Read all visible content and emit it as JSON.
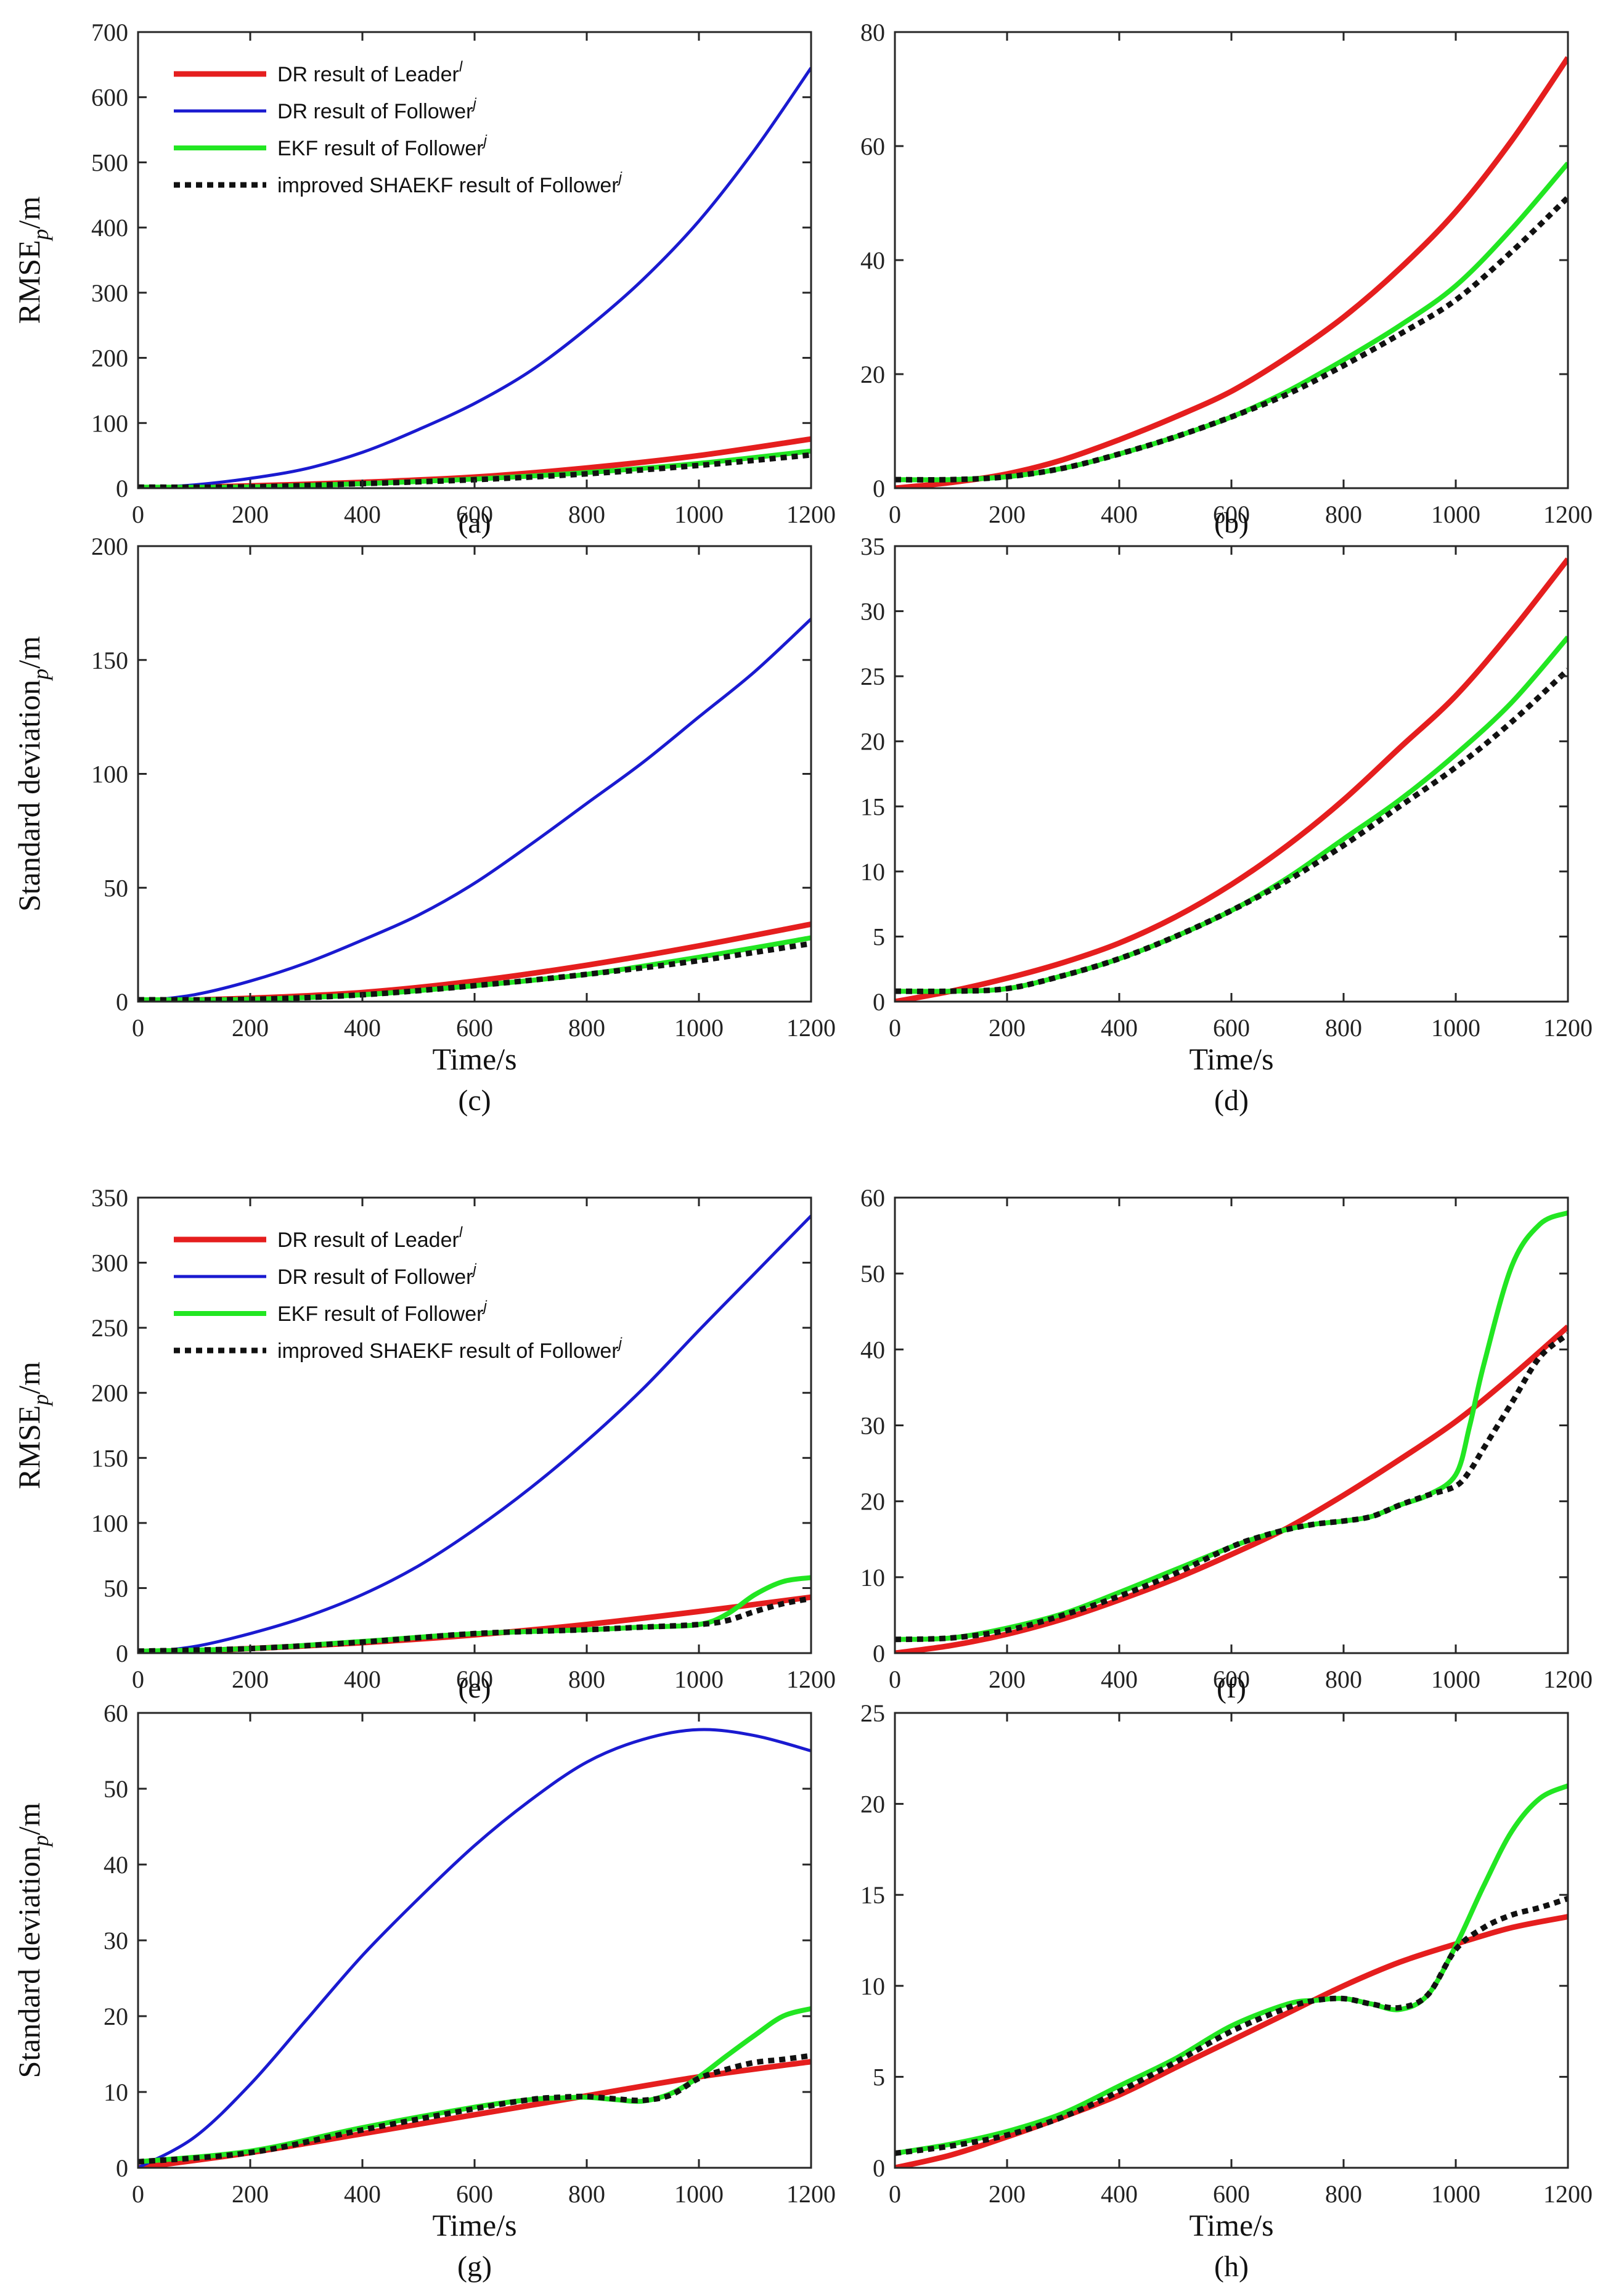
{
  "colors": {
    "leader_dr": "#e51e1e",
    "follower_dr": "#1a1ad0",
    "follower_ekf": "#22e622",
    "follower_shaekf": "#111111"
  },
  "legend_series": [
    {
      "key": "leader_dr",
      "text": "DR result of Leader",
      "sup": "l"
    },
    {
      "key": "follower_dr",
      "text": "DR result of Follower",
      "sup": "j"
    },
    {
      "key": "follower_ekf",
      "text": "EKF result of Follower",
      "sup": "j"
    },
    {
      "key": "follower_shaekf",
      "text": "improved SHAEKF result of Follower",
      "sup": "j"
    }
  ],
  "chart_data": [
    {
      "id": "a",
      "type": "line",
      "caption": "(a)",
      "ylabel": "RMSE",
      "ylabel_sub": "p",
      "ylabel_suffix": "/m",
      "xlabel": "",
      "xlim": [
        0,
        1200
      ],
      "ylim": [
        0,
        700
      ],
      "xticks": [
        0,
        200,
        400,
        600,
        800,
        1000,
        1200
      ],
      "yticks": [
        0,
        100,
        200,
        300,
        400,
        500,
        600,
        700
      ],
      "legend": true,
      "grid": false,
      "series": [
        {
          "key": "leader_dr",
          "x": [
            0,
            200,
            400,
            600,
            800,
            1000,
            1200
          ],
          "values": [
            0,
            3.5,
            9,
            17,
            31,
            50,
            75.5
          ]
        },
        {
          "key": "follower_dr",
          "x": [
            0,
            100,
            200,
            300,
            400,
            500,
            600,
            700,
            800,
            900,
            1000,
            1100,
            1200
          ],
          "values": [
            0,
            5,
            15,
            30,
            55,
            90,
            130,
            180,
            245,
            320,
            410,
            520,
            645
          ]
        },
        {
          "key": "follower_ekf",
          "x": [
            0,
            200,
            400,
            600,
            800,
            1000,
            1200
          ],
          "values": [
            1.5,
            2,
            7,
            14,
            24,
            38,
            57
          ]
        },
        {
          "key": "follower_shaekf",
          "x": [
            0,
            200,
            400,
            600,
            800,
            1000,
            1200
          ],
          "values": [
            1.5,
            2,
            7,
            13,
            22,
            35,
            51
          ]
        }
      ]
    },
    {
      "id": "b",
      "type": "line",
      "caption": "(b)",
      "ylabel": "",
      "xlabel": "",
      "xlim": [
        0,
        1200
      ],
      "ylim": [
        0,
        80
      ],
      "xticks": [
        0,
        200,
        400,
        600,
        800,
        1000,
        1200
      ],
      "yticks": [
        0,
        20,
        40,
        60,
        80
      ],
      "legend": false,
      "grid": false,
      "series": [
        {
          "key": "leader_dr",
          "x": [
            0,
            100,
            200,
            300,
            400,
            500,
            600,
            700,
            800,
            900,
            1000,
            1100,
            1200
          ],
          "values": [
            0,
            1,
            2.5,
            5,
            8.5,
            12.5,
            17,
            23,
            30,
            38.5,
            48.5,
            61,
            75.5
          ]
        },
        {
          "key": "follower_ekf",
          "x": [
            0,
            100,
            200,
            300,
            400,
            500,
            600,
            700,
            800,
            900,
            1000,
            1100,
            1200
          ],
          "values": [
            1.5,
            1.5,
            2,
            3.5,
            6,
            9,
            12.5,
            17,
            22.5,
            28.5,
            35.5,
            45.5,
            57
          ]
        },
        {
          "key": "follower_shaekf",
          "x": [
            0,
            100,
            200,
            300,
            400,
            500,
            600,
            700,
            800,
            900,
            1000,
            1100,
            1200
          ],
          "values": [
            1.5,
            1.5,
            2,
            3.5,
            6,
            9,
            12.5,
            16.5,
            21.5,
            27,
            33,
            41.5,
            51
          ]
        }
      ]
    },
    {
      "id": "c",
      "type": "line",
      "caption": "(c)",
      "ylabel": "Standard deviation",
      "ylabel_sub": "p",
      "ylabel_suffix": "/m",
      "xlabel": "Time/s",
      "xlim": [
        0,
        1200
      ],
      "ylim": [
        0,
        200
      ],
      "xticks": [
        0,
        200,
        400,
        600,
        800,
        1000,
        1200
      ],
      "yticks": [
        0,
        50,
        100,
        150,
        200
      ],
      "legend": false,
      "grid": false,
      "series": [
        {
          "key": "leader_dr",
          "x": [
            0,
            200,
            400,
            600,
            800,
            1000,
            1200
          ],
          "values": [
            0,
            1.5,
            4,
            9,
            16,
            24.5,
            34
          ]
        },
        {
          "key": "follower_dr",
          "x": [
            0,
            100,
            200,
            300,
            400,
            500,
            600,
            700,
            800,
            900,
            1000,
            1100,
            1200
          ],
          "values": [
            0,
            3,
            9,
            17,
            27,
            38,
            52,
            69,
            87,
            105,
            125,
            145,
            168
          ]
        },
        {
          "key": "follower_ekf",
          "x": [
            0,
            200,
            400,
            600,
            800,
            1000,
            1200
          ],
          "values": [
            0.8,
            1,
            3,
            7,
            12,
            19.5,
            28
          ]
        },
        {
          "key": "follower_shaekf",
          "x": [
            0,
            200,
            400,
            600,
            800,
            1000,
            1200
          ],
          "values": [
            0.8,
            1,
            3,
            7,
            12,
            18,
            25.5
          ]
        }
      ]
    },
    {
      "id": "d",
      "type": "line",
      "caption": "(d)",
      "ylabel": "",
      "xlabel": "Time/s",
      "xlim": [
        0,
        1200
      ],
      "ylim": [
        0,
        35
      ],
      "xticks": [
        0,
        200,
        400,
        600,
        800,
        1000,
        1200
      ],
      "yticks": [
        0,
        5,
        10,
        15,
        20,
        25,
        30,
        35
      ],
      "legend": false,
      "grid": false,
      "series": [
        {
          "key": "leader_dr",
          "x": [
            0,
            100,
            200,
            300,
            400,
            500,
            600,
            700,
            800,
            900,
            1000,
            1100,
            1200
          ],
          "values": [
            0,
            0.8,
            1.8,
            3,
            4.5,
            6.5,
            9,
            12,
            15.5,
            19.5,
            23.5,
            28.5,
            34
          ]
        },
        {
          "key": "follower_ekf",
          "x": [
            0,
            100,
            200,
            300,
            400,
            500,
            600,
            700,
            800,
            900,
            1000,
            1100,
            1200
          ],
          "values": [
            0.8,
            0.8,
            1,
            2,
            3.3,
            5,
            7,
            9.5,
            12.5,
            15.5,
            19,
            23,
            28
          ]
        },
        {
          "key": "follower_shaekf",
          "x": [
            0,
            100,
            200,
            300,
            400,
            500,
            600,
            700,
            800,
            900,
            1000,
            1100,
            1200
          ],
          "values": [
            0.8,
            0.8,
            1,
            2,
            3.3,
            5,
            7,
            9.3,
            12,
            15,
            18,
            21.5,
            25.5
          ]
        }
      ]
    },
    {
      "id": "e",
      "type": "line",
      "caption": "(e)",
      "ylabel": "RMSE",
      "ylabel_sub": "p",
      "ylabel_suffix": "/m",
      "xlabel": "",
      "xlim": [
        0,
        1200
      ],
      "ylim": [
        0,
        350
      ],
      "xticks": [
        0,
        200,
        400,
        600,
        800,
        1000,
        1200
      ],
      "yticks": [
        0,
        50,
        100,
        150,
        200,
        250,
        300,
        350
      ],
      "legend": true,
      "grid": false,
      "series": [
        {
          "key": "leader_dr",
          "x": [
            0,
            200,
            400,
            600,
            800,
            1000,
            1200
          ],
          "values": [
            0,
            3.5,
            8,
            14,
            22,
            32,
            43
          ]
        },
        {
          "key": "follower_dr",
          "x": [
            0,
            100,
            200,
            300,
            400,
            500,
            600,
            700,
            800,
            900,
            1000,
            1100,
            1200
          ],
          "values": [
            0,
            5,
            15,
            28,
            45,
            67,
            95,
            127,
            163,
            203,
            248,
            292,
            336
          ]
        },
        {
          "key": "follower_ekf",
          "x": [
            0,
            200,
            400,
            600,
            800,
            900,
            1000,
            1050,
            1100,
            1150,
            1200
          ],
          "values": [
            1.5,
            3.5,
            9,
            15,
            18,
            20,
            22,
            30,
            45,
            55,
            58
          ]
        },
        {
          "key": "follower_shaekf",
          "x": [
            0,
            200,
            400,
            600,
            800,
            900,
            1000,
            1050,
            1100,
            1150,
            1200
          ],
          "values": [
            1.5,
            3.5,
            8.5,
            15,
            18,
            20,
            22,
            25,
            32,
            38,
            42
          ]
        }
      ]
    },
    {
      "id": "f",
      "type": "line",
      "caption": "(f)",
      "ylabel": "",
      "xlabel": "",
      "xlim": [
        0,
        1200
      ],
      "ylim": [
        0,
        60
      ],
      "xticks": [
        0,
        200,
        400,
        600,
        800,
        1000,
        1200
      ],
      "yticks": [
        0,
        10,
        20,
        30,
        40,
        50,
        60
      ],
      "legend": false,
      "grid": false,
      "series": [
        {
          "key": "leader_dr",
          "x": [
            0,
            100,
            200,
            300,
            400,
            500,
            600,
            700,
            800,
            900,
            1000,
            1100,
            1200
          ],
          "values": [
            0,
            1,
            2.5,
            4.5,
            7,
            9.8,
            13,
            16.5,
            20.8,
            25.5,
            30.5,
            36.5,
            43
          ]
        },
        {
          "key": "follower_ekf",
          "x": [
            0,
            100,
            200,
            300,
            400,
            500,
            600,
            650,
            700,
            750,
            800,
            850,
            900,
            950,
            1000,
            1025,
            1050,
            1100,
            1150,
            1200
          ],
          "values": [
            1.8,
            2,
            3.3,
            5.2,
            8,
            11,
            14,
            15.3,
            16.3,
            17,
            17.4,
            18,
            19.5,
            20.8,
            23.5,
            30,
            38,
            51,
            56.5,
            58
          ]
        },
        {
          "key": "follower_shaekf",
          "x": [
            0,
            100,
            200,
            300,
            400,
            500,
            600,
            650,
            700,
            750,
            800,
            850,
            900,
            950,
            1000,
            1025,
            1050,
            1100,
            1150,
            1200
          ],
          "values": [
            1.8,
            2,
            3,
            5,
            7.5,
            10.5,
            14,
            15.3,
            16.3,
            17,
            17.4,
            18,
            19.5,
            20.8,
            22,
            24,
            27,
            33,
            39,
            42
          ]
        }
      ]
    },
    {
      "id": "g",
      "type": "line",
      "caption": "(g)",
      "ylabel": "Standard deviation",
      "ylabel_sub": "p",
      "ylabel_suffix": "/m",
      "xlabel": "Time/s",
      "xlim": [
        0,
        1200
      ],
      "ylim": [
        0,
        60
      ],
      "xticks": [
        0,
        200,
        400,
        600,
        800,
        1000,
        1200
      ],
      "yticks": [
        0,
        10,
        20,
        30,
        40,
        50,
        60
      ],
      "legend": false,
      "grid": false,
      "series": [
        {
          "key": "leader_dr",
          "x": [
            0,
            200,
            400,
            600,
            800,
            1000,
            1200
          ],
          "values": [
            0,
            2,
            4.5,
            7,
            9.5,
            12,
            14
          ]
        },
        {
          "key": "follower_dr",
          "x": [
            0,
            100,
            200,
            300,
            400,
            500,
            600,
            700,
            800,
            900,
            1000,
            1100,
            1200
          ],
          "values": [
            0,
            4,
            11,
            19.5,
            28,
            35.5,
            42.5,
            48.5,
            53.5,
            56.5,
            57.8,
            57,
            55
          ]
        },
        {
          "key": "follower_ekf",
          "x": [
            0,
            200,
            400,
            600,
            700,
            750,
            800,
            850,
            900,
            950,
            1000,
            1050,
            1100,
            1150,
            1200
          ],
          "values": [
            0.8,
            2.2,
            5.3,
            8,
            9,
            9.2,
            9.3,
            9,
            8.8,
            9.8,
            12,
            14.8,
            17.5,
            20,
            21
          ]
        },
        {
          "key": "follower_shaekf",
          "x": [
            0,
            200,
            400,
            600,
            700,
            750,
            800,
            850,
            900,
            950,
            1000,
            1050,
            1100,
            1150,
            1200
          ],
          "values": [
            0.8,
            2,
            5,
            7.8,
            9,
            9.3,
            9.4,
            9.1,
            8.9,
            9.6,
            11.8,
            13,
            13.9,
            14.3,
            14.8
          ]
        }
      ]
    },
    {
      "id": "h",
      "type": "line",
      "caption": "(h)",
      "ylabel": "",
      "xlabel": "Time/s",
      "xlim": [
        0,
        1200
      ],
      "ylim": [
        0,
        25
      ],
      "xticks": [
        0,
        200,
        400,
        600,
        800,
        1000,
        1200
      ],
      "yticks": [
        0,
        5,
        10,
        15,
        20,
        25
      ],
      "legend": false,
      "grid": false,
      "series": [
        {
          "key": "leader_dr",
          "x": [
            0,
            100,
            200,
            300,
            400,
            500,
            600,
            700,
            800,
            900,
            1000,
            1100,
            1200
          ],
          "values": [
            0,
            0.7,
            1.7,
            2.8,
            4,
            5.5,
            7,
            8.5,
            10,
            11.3,
            12.3,
            13.2,
            13.8
          ]
        },
        {
          "key": "follower_ekf",
          "x": [
            0,
            100,
            200,
            300,
            400,
            500,
            600,
            700,
            750,
            800,
            850,
            900,
            950,
            1000,
            1050,
            1100,
            1150,
            1200
          ],
          "values": [
            0.8,
            1.3,
            2,
            3,
            4.5,
            6,
            7.8,
            9,
            9.2,
            9.3,
            9,
            8.7,
            9.5,
            12.2,
            15.5,
            18.5,
            20.3,
            21
          ]
        },
        {
          "key": "follower_shaekf",
          "x": [
            0,
            100,
            200,
            300,
            400,
            500,
            600,
            700,
            750,
            800,
            850,
            900,
            950,
            1000,
            1050,
            1100,
            1150,
            1200
          ],
          "values": [
            0.8,
            1.2,
            1.8,
            2.8,
            4.2,
            5.8,
            7.5,
            8.8,
            9.2,
            9.3,
            9,
            8.8,
            9.5,
            12,
            13.2,
            13.9,
            14.3,
            14.8
          ]
        }
      ]
    }
  ]
}
